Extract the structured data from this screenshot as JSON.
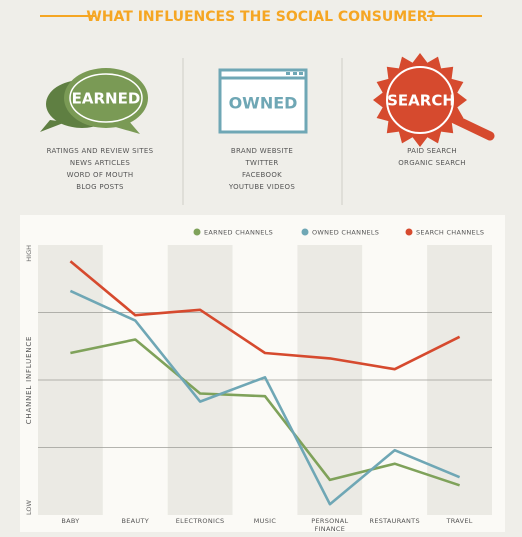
{
  "header": {
    "title": "WHAT INFLUENCES THE SOCIAL CONSUMER?"
  },
  "columns": [
    {
      "label": "EARNED",
      "items": [
        "RATINGS AND REVIEW SITES",
        "NEWS ARTICLES",
        "WORD OF MOUTH",
        "BLOG POSTS"
      ]
    },
    {
      "label": "OWNED",
      "items": [
        "BRAND WEBSITE",
        "TWITTER",
        "FACEBOOK",
        "YOUTUBE VIDEOS"
      ]
    },
    {
      "label": "SEARCH",
      "items": [
        "PAID SEARCH",
        "ORGANIC SEARCH"
      ]
    }
  ],
  "chart_data": {
    "type": "line",
    "y_label": "CHANNEL INFLUENCE",
    "categories": [
      "BABY",
      "BEAUTY",
      "ELECTRONICS",
      "MUSIC",
      "PERSONAL FINANCE",
      "RESTAURANTS",
      "TRAVEL"
    ],
    "series": [
      {
        "name": "EARNED CHANNELS",
        "color": "#7fa25a",
        "values": [
          60,
          65,
          45,
          44,
          13,
          19,
          11
        ]
      },
      {
        "name": "OWNED CHANNELS",
        "color": "#6fa7b5",
        "values": [
          83,
          72,
          42,
          51,
          4,
          24,
          14
        ]
      },
      {
        "name": "SEARCH CHANNELS",
        "color": "#d64a2e",
        "values": [
          94,
          74,
          76,
          60,
          58,
          54,
          66
        ]
      }
    ],
    "ylim": [
      0,
      100
    ],
    "yticks": [
      {
        "value": 0,
        "label": "LOW"
      },
      {
        "value": 100,
        "label": "HIGH"
      }
    ],
    "gridlines": [
      25,
      50,
      75
    ],
    "grid": true,
    "legend": "top"
  }
}
